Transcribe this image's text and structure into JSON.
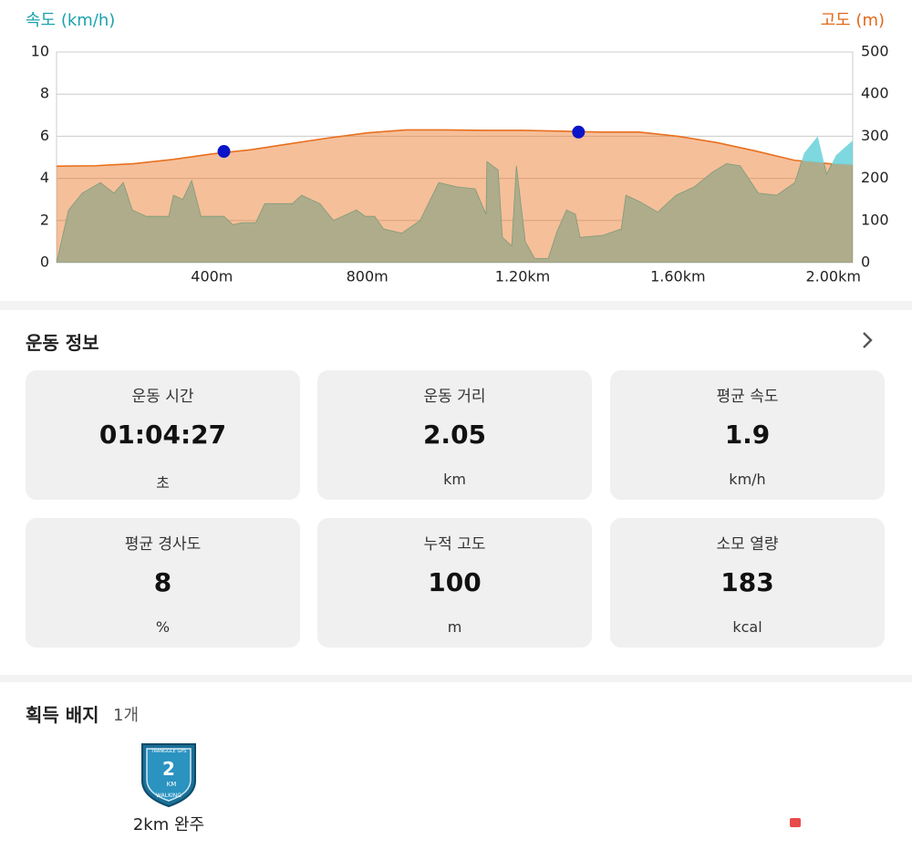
{
  "chart_data": {
    "type": "area",
    "y_title": "속도 (km/h)",
    "y2_title": "고도 (m)",
    "xlim": [
      0,
      2050
    ],
    "ylim": [
      0,
      10
    ],
    "y2lim": [
      0,
      500
    ],
    "xticks": [
      {
        "value": 400,
        "label": "400m"
      },
      {
        "value": 800,
        "label": "800m"
      },
      {
        "value": 1200,
        "label": "1.20km"
      },
      {
        "value": 1600,
        "label": "1.60km"
      },
      {
        "value": 2000,
        "label": "2.00km"
      }
    ],
    "yticks": [
      0,
      2,
      4,
      6,
      8,
      10
    ],
    "y2ticks": [
      0,
      100,
      200,
      300,
      400,
      500
    ],
    "grid": true,
    "series": [
      {
        "name": "고도",
        "color": "#e8701e",
        "axis": "y2",
        "x": [
          0,
          100,
          200,
          300,
          400,
          500,
          600,
          700,
          800,
          900,
          1000,
          1100,
          1200,
          1300,
          1400,
          1500,
          1600,
          1700,
          1800,
          1900,
          2000,
          2050
        ],
        "values": [
          229,
          230,
          235,
          245,
          258,
          268,
          282,
          296,
          308,
          315,
          315,
          314,
          314,
          312,
          310,
          310,
          300,
          285,
          265,
          243,
          234,
          232
        ]
      },
      {
        "name": "속도",
        "color": "#70d4dc",
        "axis": "y",
        "x": [
          0,
          31,
          66,
          113,
          148,
          172,
          195,
          231,
          289,
          301,
          325,
          348,
          372,
          431,
          454,
          478,
          513,
          536,
          607,
          631,
          678,
          713,
          772,
          795,
          819,
          842,
          889,
          936,
          984,
          1031,
          1078,
          1106,
          1108,
          1137,
          1148,
          1172,
          1184,
          1207,
          1231,
          1266,
          1289,
          1313,
          1336,
          1348,
          1407,
          1454,
          1466,
          1501,
          1548,
          1595,
          1642,
          1689,
          1725,
          1760,
          1807,
          1854,
          1901,
          1925,
          1960,
          1983,
          2007,
          2050
        ],
        "values": [
          0,
          2.5,
          3.3,
          3.8,
          3.3,
          3.8,
          2.5,
          2.2,
          2.2,
          3.2,
          3,
          3.9,
          2.2,
          2.2,
          1.8,
          1.9,
          1.9,
          2.8,
          2.8,
          3.2,
          2.8,
          2,
          2.5,
          2.2,
          2.2,
          1.6,
          1.4,
          2,
          3.8,
          3.6,
          3.5,
          2.3,
          4.8,
          4.4,
          1.2,
          0.8,
          4.6,
          1,
          0.2,
          0.2,
          1.5,
          2.5,
          2.3,
          1.2,
          1.3,
          1.6,
          3.2,
          2.9,
          2.4,
          3.2,
          3.6,
          4.3,
          4.7,
          4.6,
          3.3,
          3.2,
          3.8,
          5.2,
          6,
          4.2,
          5.1,
          5.8
        ]
      }
    ],
    "markers": {
      "color": "#0a14c8",
      "axis": "y2",
      "x": [
        431,
        1344
      ],
      "values": [
        264,
        310
      ]
    }
  },
  "info": {
    "title": "운동 정보",
    "cards": [
      {
        "label": "운동 시간",
        "value": "01:04:27",
        "unit": "초"
      },
      {
        "label": "운동 거리",
        "value": 2.05,
        "unit": "km"
      },
      {
        "label": "평균 속도",
        "value": 1.9,
        "unit": "km/h"
      },
      {
        "label": "평균 경사도",
        "value": 8,
        "unit": "%"
      },
      {
        "label": "누적 고도",
        "value": 100,
        "unit": "m"
      },
      {
        "label": "소모 열량",
        "value": 183,
        "unit": "kcal"
      }
    ]
  },
  "badges": {
    "title": "획득 배지",
    "count": "1개",
    "items": [
      {
        "name": "2km 완주",
        "icon_texts": [
          "TRANGGLE GPS",
          "2",
          "KM",
          "WALKING"
        ]
      }
    ]
  }
}
